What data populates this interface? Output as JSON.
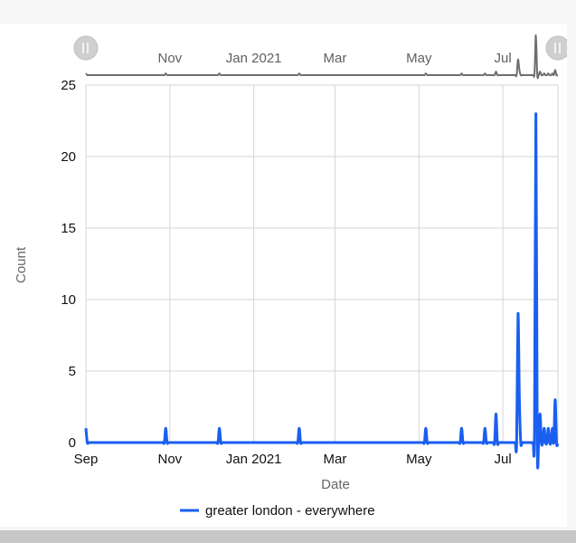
{
  "chart_data": {
    "type": "line",
    "title": "",
    "xlabel": "Date",
    "ylabel": "Count",
    "ylim": [
      0,
      25
    ],
    "xlim": [
      "2020-09-01",
      "2021-08-10"
    ],
    "y_ticks": [
      0,
      5,
      10,
      15,
      20,
      25
    ],
    "x_ticks": [
      {
        "date": "2020-09-01",
        "label": "Sep"
      },
      {
        "date": "2020-11-01",
        "label": "Nov"
      },
      {
        "date": "2021-01-01",
        "label": "Jan 2021"
      },
      {
        "date": "2021-03-01",
        "label": "Mar"
      },
      {
        "date": "2021-05-01",
        "label": "May"
      },
      {
        "date": "2021-07-01",
        "label": "Jul"
      }
    ],
    "navigator_ticks": [
      {
        "date": "2020-11-01",
        "label": "Nov"
      },
      {
        "date": "2021-01-01",
        "label": "Jan 2021"
      },
      {
        "date": "2021-03-01",
        "label": "Mar"
      },
      {
        "date": "2021-05-01",
        "label": "May"
      },
      {
        "date": "2021-07-01",
        "label": "Jul"
      }
    ],
    "grid": true,
    "legend": "bottom-center",
    "series": [
      {
        "name": "greater london - everywhere",
        "color": "#1a5ff0",
        "points": [
          {
            "x": "2020-09-01",
            "y": 1
          },
          {
            "x": "2020-10-29",
            "y": 1
          },
          {
            "x": "2020-12-07",
            "y": 1
          },
          {
            "x": "2021-02-03",
            "y": 1
          },
          {
            "x": "2021-05-06",
            "y": 1
          },
          {
            "x": "2021-06-01",
            "y": 1
          },
          {
            "x": "2021-06-18",
            "y": 1
          },
          {
            "x": "2021-06-26",
            "y": 2
          },
          {
            "x": "2021-07-12",
            "y": 9
          },
          {
            "x": "2021-07-13",
            "y": 3
          },
          {
            "x": "2021-07-24",
            "y": 1
          },
          {
            "x": "2021-07-25",
            "y": 23
          },
          {
            "x": "2021-07-28",
            "y": 2
          },
          {
            "x": "2021-07-31",
            "y": 1
          },
          {
            "x": "2021-08-03",
            "y": 1
          },
          {
            "x": "2021-08-06",
            "y": 1
          },
          {
            "x": "2021-08-08",
            "y": 3
          }
        ]
      }
    ]
  },
  "colors": {
    "series_line": "#1a5ff0",
    "navigator_line": "#6e6e6e",
    "grid": "#d6d6d6",
    "axis_text": "#111111",
    "axis_title": "#666666"
  },
  "icons": {
    "navigator_handle": "pause-bars-icon"
  }
}
